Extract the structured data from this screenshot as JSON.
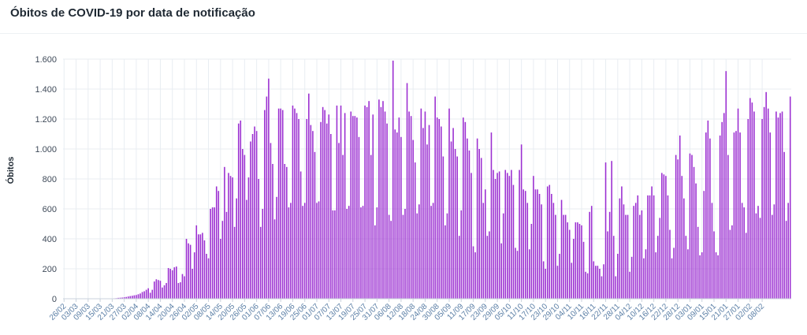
{
  "page": {
    "title": "Óbitos de COVID-19 por data de notificação"
  },
  "colors": {
    "bar": "#9b2fd1",
    "grid": "#e8edf2",
    "axis_text": "#3f4a59",
    "x_tick_text": "#5b7fa6"
  },
  "chart_data": {
    "type": "bar",
    "title": "Óbitos de COVID-19 por data de notificação",
    "xlabel": "",
    "ylabel": "Óbitos",
    "ylim": [
      0,
      1600
    ],
    "yticks": [
      0,
      200,
      400,
      600,
      800,
      1000,
      1200,
      1400,
      1600
    ],
    "ytick_labels": [
      "0",
      "200",
      "400",
      "600",
      "800",
      "1.000",
      "1.200",
      "1.400",
      "1.600"
    ],
    "grid": true,
    "xtick_labels": [
      "26/02",
      "03/03",
      "09/03",
      "15/03",
      "21/03",
      "27/03",
      "02/04",
      "08/04",
      "14/04",
      "20/04",
      "26/04",
      "02/05",
      "08/05",
      "14/05",
      "20/05",
      "26/05",
      "01/06",
      "07/06",
      "13/06",
      "19/06",
      "25/06",
      "01/07",
      "07/07",
      "13/07",
      "19/07",
      "25/07",
      "31/07",
      "06/08",
      "12/08",
      "18/08",
      "24/08",
      "30/08",
      "05/09",
      "11/09",
      "17/09",
      "23/09",
      "29/09",
      "05/10",
      "11/10",
      "17/10",
      "23/10",
      "29/10",
      "04/11",
      "10/11",
      "16/11",
      "22/11",
      "28/11",
      "04/12",
      "10/12",
      "16/12",
      "22/12",
      "28/12",
      "03/01",
      "09/01",
      "15/01",
      "21/01",
      "27/01",
      "02/02",
      "08/02"
    ],
    "series": [
      {
        "values": [
          0,
          0,
          0,
          0,
          0,
          0,
          0,
          0,
          0,
          0,
          0,
          0,
          0,
          0,
          0,
          0,
          0,
          0,
          0,
          0,
          1,
          0,
          1,
          0,
          2,
          3,
          4,
          6,
          7,
          8,
          10,
          12,
          15,
          18,
          20,
          23,
          25,
          30,
          35,
          45,
          50,
          60,
          70,
          40,
          60,
          115,
          130,
          125,
          120,
          75,
          90,
          105,
          205,
          200,
          190,
          210,
          215,
          105,
          110,
          165,
          150,
          400,
          370,
          360,
          200,
          310,
          490,
          430,
          430,
          440,
          390,
          300,
          270,
          600,
          610,
          610,
          750,
          720,
          400,
          520,
          880,
          580,
          840,
          820,
          810,
          480,
          670,
          1170,
          1190,
          1000,
          960,
          660,
          810,
          1050,
          1100,
          1150,
          1120,
          800,
          480,
          600,
          1260,
          1350,
          1470,
          1040,
          900,
          530,
          680,
          1270,
          1270,
          1260,
          900,
          880,
          610,
          640,
          1290,
          1270,
          1240,
          1200,
          850,
          620,
          640,
          1200,
          1370,
          1160,
          1120,
          980,
          640,
          650,
          1180,
          1280,
          1260,
          1170,
          1230,
          1100,
          590,
          590,
          1290,
          1040,
          1290,
          960,
          1240,
          600,
          620,
          1250,
          1220,
          1220,
          1210,
          1080,
          610,
          620,
          1290,
          1280,
          1320,
          960,
          1230,
          490,
          610,
          1330,
          1280,
          1320,
          1250,
          1170,
          560,
          520,
          1590,
          1130,
          1110,
          1210,
          1080,
          560,
          600,
          1440,
          1250,
          1220,
          1060,
          910,
          570,
          630,
          1270,
          1140,
          1250,
          1030,
          1160,
          620,
          640,
          1350,
          1210,
          1200,
          1150,
          950,
          490,
          570,
          1270,
          1050,
          1140,
          1000,
          950,
          420,
          590,
          1210,
          1180,
          1070,
          990,
          840,
          350,
          310,
          1070,
          1000,
          940,
          640,
          730,
          420,
          450,
          1110,
          860,
          800,
          840,
          850,
          370,
          570,
          860,
          840,
          820,
          860,
          760,
          340,
          320,
          860,
          1030,
          730,
          720,
          640,
          330,
          500,
          820,
          730,
          730,
          700,
          630,
          250,
          200,
          750,
          760,
          700,
          640,
          560,
          220,
          300,
          660,
          560,
          560,
          510,
          460,
          240,
          400,
          510,
          510,
          500,
          490,
          380,
          180,
          170,
          580,
          620,
          250,
          220,
          220,
          200,
          150,
          230,
          910,
          450,
          580,
          920,
          420,
          150,
          300,
          670,
          750,
          630,
          560,
          560,
          180,
          280,
          620,
          640,
          690,
          560,
          590,
          270,
          330,
          690,
          690,
          750,
          690,
          310,
          420,
          540,
          840,
          830,
          820,
          690,
          460,
          270,
          340,
          960,
          930,
          1090,
          820,
          670,
          420,
          330,
          970,
          960,
          880,
          770,
          480,
          290,
          310,
          720,
          1110,
          1190,
          1070,
          640,
          450,
          310,
          290,
          1090,
          1180,
          1240,
          1520,
          960,
          460,
          490,
          1110,
          1120,
          1270,
          1110,
          640,
          610,
          440,
          1200,
          1340,
          1310,
          1250,
          570,
          620,
          540,
          1200,
          1280,
          1380,
          1270,
          1110,
          560,
          630,
          1250,
          1210,
          1240,
          1250,
          980,
          520,
          640,
          1350
        ]
      }
    ]
  }
}
